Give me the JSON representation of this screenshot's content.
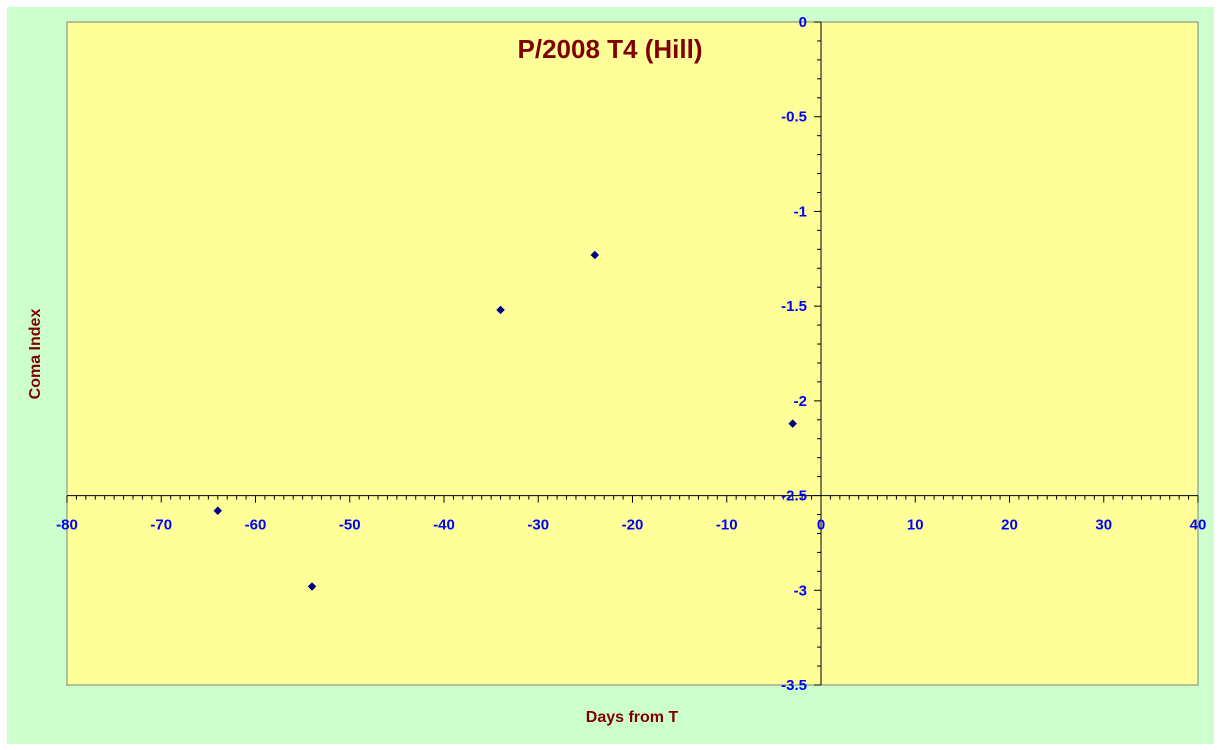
{
  "chart_data": {
    "type": "scatter",
    "title": "P/2008 T4 (Hill)",
    "xlabel": "Days from T",
    "ylabel": "Coma Index",
    "xlim": [
      -80,
      40
    ],
    "ylim": [
      -3.5,
      0
    ],
    "x_major_step": 10,
    "y_major_step": 0.5,
    "x_axis_crosses_y": -2.5,
    "y_axis_crosses_x": 0,
    "grid": false,
    "legend": "none",
    "x_ticks": [
      "-80",
      "-70",
      "-60",
      "-50",
      "-40",
      "-30",
      "-20",
      "-10",
      "0",
      "10",
      "20",
      "30",
      "40"
    ],
    "y_ticks": [
      "0",
      "-0.5",
      "-1",
      "-1.5",
      "-2",
      "-2.5",
      "-3",
      "-3.5"
    ],
    "series": [
      {
        "points": [
          {
            "x": -64,
            "y": -2.58
          },
          {
            "x": -54,
            "y": -2.98
          },
          {
            "x": -34,
            "y": -1.52
          },
          {
            "x": -24,
            "y": -1.23
          },
          {
            "x": -3,
            "y": -2.12
          }
        ]
      }
    ],
    "colors": {
      "background": "#ccffcc",
      "plot_area": "#ffff99",
      "axis": "#000000",
      "tick_label": "#0000ff",
      "title": "#800000",
      "axis_title": "#800000",
      "marker": "#000080"
    }
  }
}
